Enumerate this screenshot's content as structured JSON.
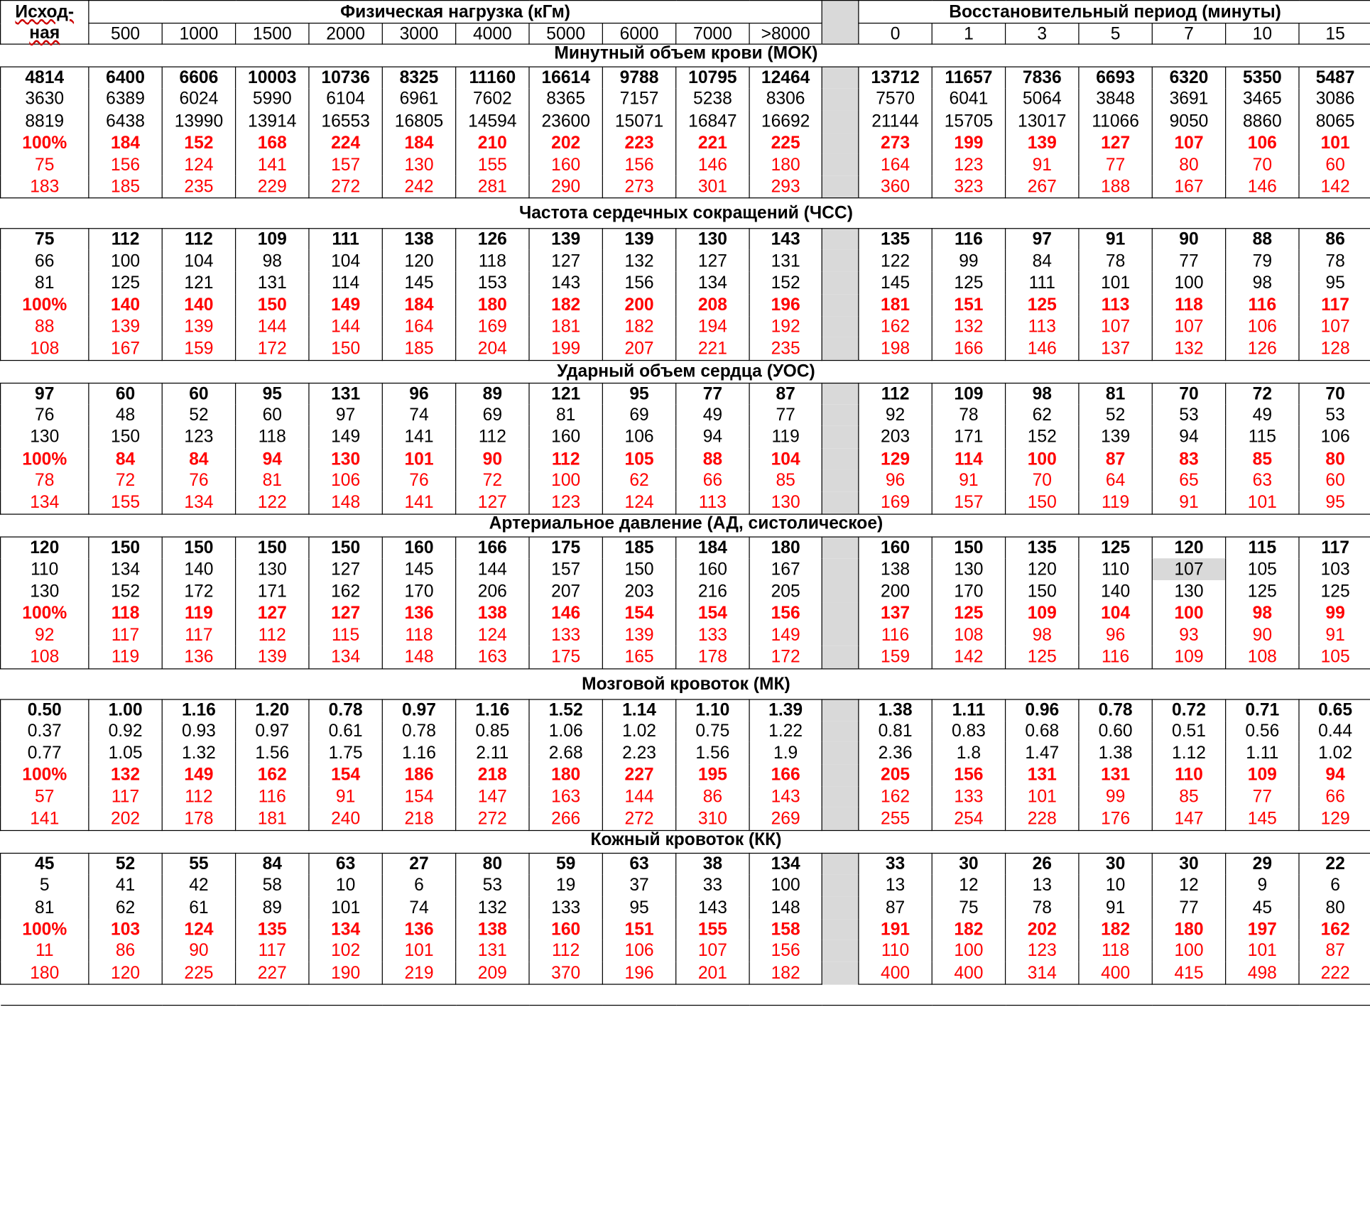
{
  "header": {
    "corner": [
      "Исход-",
      "ная"
    ],
    "load_title": "Физическая нагрузка (кГм)",
    "load_cols": [
      "500",
      "1000",
      "1500",
      "2000",
      "3000",
      "4000",
      "5000",
      "6000",
      "7000",
      ">8000"
    ],
    "recovery_title": "Восстановительный период (минуты)",
    "recovery_cols": [
      "0",
      "1",
      "3",
      "5",
      "7",
      "10",
      "15"
    ]
  },
  "sections": [
    {
      "title": "Минутный объем крови (МОК)",
      "rows": [
        [
          "4814",
          "6400",
          "6606",
          "10003",
          "10736",
          "8325",
          "11160",
          "16614",
          "9788",
          "10795",
          "12464",
          "13712",
          "11657",
          "7836",
          "6693",
          "6320",
          "5350",
          "5487"
        ],
        [
          "3630",
          "6389",
          "6024",
          "5990",
          "6104",
          "6961",
          "7602",
          "8365",
          "7157",
          "5238",
          "8306",
          "7570",
          "6041",
          "5064",
          "3848",
          "3691",
          "3465",
          "3086"
        ],
        [
          "8819",
          "6438",
          "13990",
          "13914",
          "16553",
          "16805",
          "14594",
          "23600",
          "15071",
          "16847",
          "16692",
          "21144",
          "15705",
          "13017",
          "11066",
          "9050",
          "8860",
          "8065"
        ],
        [
          "100%",
          "184",
          "152",
          "168",
          "224",
          "184",
          "210",
          "202",
          "223",
          "221",
          "225",
          "273",
          "199",
          "139",
          "127",
          "107",
          "106",
          "101"
        ],
        [
          "75",
          "156",
          "124",
          "141",
          "157",
          "130",
          "155",
          "160",
          "156",
          "146",
          "180",
          "164",
          "123",
          "91",
          "77",
          "80",
          "70",
          "60"
        ],
        [
          "183",
          "185",
          "235",
          "229",
          "272",
          "242",
          "281",
          "290",
          "273",
          "301",
          "293",
          "360",
          "323",
          "267",
          "188",
          "167",
          "146",
          "142"
        ]
      ]
    },
    {
      "title": "Частота сердечных сокращений (ЧСС)",
      "rows": [
        [
          "75",
          "112",
          "112",
          "109",
          "111",
          "138",
          "126",
          "139",
          "139",
          "130",
          "143",
          "135",
          "116",
          "97",
          "91",
          "90",
          "88",
          "86"
        ],
        [
          "66",
          "100",
          "104",
          "98",
          "104",
          "120",
          "118",
          "127",
          "132",
          "127",
          "131",
          "122",
          "99",
          "84",
          "78",
          "77",
          "79",
          "78"
        ],
        [
          "81",
          "125",
          "121",
          "131",
          "114",
          "145",
          "153",
          "143",
          "156",
          "134",
          "152",
          "145",
          "125",
          "111",
          "101",
          "100",
          "98",
          "95"
        ],
        [
          "100%",
          "140",
          "140",
          "150",
          "149",
          "184",
          "180",
          "182",
          "200",
          "208",
          "196",
          "181",
          "151",
          "125",
          "113",
          "118",
          "116",
          "117"
        ],
        [
          "88",
          "139",
          "139",
          "144",
          "144",
          "164",
          "169",
          "181",
          "182",
          "194",
          "192",
          "162",
          "132",
          "113",
          "107",
          "107",
          "106",
          "107"
        ],
        [
          "108",
          "167",
          "159",
          "172",
          "150",
          "185",
          "204",
          "199",
          "207",
          "221",
          "235",
          "198",
          "166",
          "146",
          "137",
          "132",
          "126",
          "128"
        ]
      ]
    },
    {
      "title": "Ударный объем сердца (УОС)",
      "rows": [
        [
          "97",
          "60",
          "60",
          "95",
          "131",
          "96",
          "89",
          "121",
          "95",
          "77",
          "87",
          "112",
          "109",
          "98",
          "81",
          "70",
          "72",
          "70"
        ],
        [
          "76",
          "48",
          "52",
          "60",
          "97",
          "74",
          "69",
          "81",
          "69",
          "49",
          "77",
          "92",
          "78",
          "62",
          "52",
          "53",
          "49",
          "53"
        ],
        [
          "130",
          "150",
          "123",
          "118",
          "149",
          "141",
          "112",
          "160",
          "106",
          "94",
          "119",
          "203",
          "171",
          "152",
          "139",
          "94",
          "115",
          "106"
        ],
        [
          "100%",
          "84",
          "84",
          "94",
          "130",
          "101",
          "90",
          "112",
          "105",
          "88",
          "104",
          "129",
          "114",
          "100",
          "87",
          "83",
          "85",
          "80"
        ],
        [
          "78",
          "72",
          "76",
          "81",
          "106",
          "76",
          "72",
          "100",
          "62",
          "66",
          "85",
          "96",
          "91",
          "70",
          "64",
          "65",
          "63",
          "60"
        ],
        [
          "134",
          "155",
          "134",
          "122",
          "148",
          "141",
          "127",
          "123",
          "124",
          "113",
          "130",
          "169",
          "157",
          "150",
          "119",
          "91",
          "101",
          "95"
        ]
      ]
    },
    {
      "title": "Артериальное давление (АД, систолическое)",
      "rows": [
        [
          "120",
          "150",
          "150",
          "150",
          "150",
          "160",
          "166",
          "175",
          "185",
          "184",
          "180",
          "160",
          "150",
          "135",
          "125",
          "120",
          "115",
          "117"
        ],
        [
          "110",
          "134",
          "140",
          "130",
          "127",
          "145",
          "144",
          "157",
          "150",
          "160",
          "167",
          "138",
          "130",
          "120",
          "110",
          "107",
          "105",
          "103"
        ],
        [
          "130",
          "152",
          "172",
          "171",
          "162",
          "170",
          "206",
          "207",
          "203",
          "216",
          "205",
          "200",
          "170",
          "150",
          "140",
          "130",
          "125",
          "125"
        ],
        [
          "100%",
          "118",
          "119",
          "127",
          "127",
          "136",
          "138",
          "146",
          "154",
          "154",
          "156",
          "137",
          "125",
          "109",
          "104",
          "100",
          "98",
          "99"
        ],
        [
          "92",
          "117",
          "117",
          "112",
          "115",
          "118",
          "124",
          "133",
          "139",
          "133",
          "149",
          "116",
          "108",
          "98",
          "96",
          "93",
          "90",
          "91"
        ],
        [
          "108",
          "119",
          "136",
          "139",
          "134",
          "148",
          "163",
          "175",
          "165",
          "178",
          "172",
          "159",
          "142",
          "125",
          "116",
          "109",
          "108",
          "105"
        ]
      ]
    },
    {
      "title": "Мозговой кровоток (МК)",
      "rows": [
        [
          "0.50",
          "1.00",
          "1.16",
          "1.20",
          "0.78",
          "0.97",
          "1.16",
          "1.52",
          "1.14",
          "1.10",
          "1.39",
          "1.38",
          "1.11",
          "0.96",
          "0.78",
          "0.72",
          "0.71",
          "0.65"
        ],
        [
          "0.37",
          "0.92",
          "0.93",
          "0.97",
          "0.61",
          "0.78",
          "0.85",
          "1.06",
          "1.02",
          "0.75",
          "1.22",
          "0.81",
          "0.83",
          "0.68",
          "0.60",
          "0.51",
          "0.56",
          "0.44"
        ],
        [
          "0.77",
          "1.05",
          "1.32",
          "1.56",
          "1.75",
          "1.16",
          "2.11",
          "2.68",
          "2.23",
          "1.56",
          "1.9",
          "2.36",
          "1.8",
          "1.47",
          "1.38",
          "1.12",
          "1.11",
          "1.02"
        ],
        [
          "100%",
          "132",
          "149",
          "162",
          "154",
          "186",
          "218",
          "180",
          "227",
          "195",
          "166",
          "205",
          "156",
          "131",
          "131",
          "110",
          "109",
          "94"
        ],
        [
          "57",
          "117",
          "112",
          "116",
          "91",
          "154",
          "147",
          "163",
          "144",
          "86",
          "143",
          "162",
          "133",
          "101",
          "99",
          "85",
          "77",
          "66"
        ],
        [
          "141",
          "202",
          "178",
          "181",
          "240",
          "218",
          "272",
          "266",
          "272",
          "310",
          "269",
          "255",
          "254",
          "228",
          "176",
          "147",
          "145",
          "129"
        ]
      ]
    },
    {
      "title": "Кожный кровоток (КК)",
      "rows": [
        [
          "45",
          "52",
          "55",
          "84",
          "63",
          "27",
          "80",
          "59",
          "63",
          "38",
          "134",
          "33",
          "30",
          "26",
          "30",
          "30",
          "29",
          "22"
        ],
        [
          "5",
          "41",
          "42",
          "58",
          "10",
          "6",
          "53",
          "19",
          "37",
          "33",
          "100",
          "13",
          "12",
          "13",
          "10",
          "12",
          "9",
          "6"
        ],
        [
          "81",
          "62",
          "61",
          "89",
          "101",
          "74",
          "132",
          "133",
          "95",
          "143",
          "148",
          "87",
          "75",
          "78",
          "91",
          "77",
          "45",
          "80"
        ],
        [
          "100%",
          "103",
          "124",
          "135",
          "134",
          "136",
          "138",
          "160",
          "151",
          "155",
          "158",
          "191",
          "182",
          "202",
          "182",
          "180",
          "197",
          "162"
        ],
        [
          "11",
          "86",
          "90",
          "117",
          "102",
          "101",
          "131",
          "112",
          "106",
          "107",
          "156",
          "110",
          "100",
          "123",
          "118",
          "100",
          "101",
          "87"
        ],
        [
          "180",
          "120",
          "225",
          "227",
          "190",
          "219",
          "209",
          "370",
          "196",
          "201",
          "182",
          "400",
          "400",
          "314",
          "400",
          "415",
          "498",
          "222"
        ]
      ]
    }
  ],
  "colors": {
    "text": "#000000",
    "percent_rows": "#ff0000",
    "separator": "#d9d9d9",
    "highlight_cell": "#d9d9d9"
  }
}
